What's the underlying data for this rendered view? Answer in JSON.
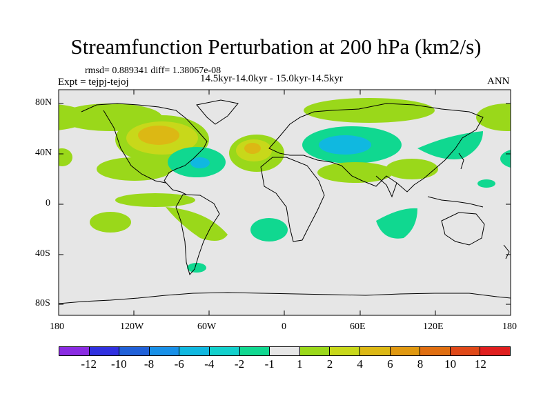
{
  "title": "Streamfunction Perturbation at 200 hPa (km2/s)",
  "stats_line": "rmsd= 0.889341 diff= 1.38067e-08",
  "left_label": "Expt = tejpj-tejoj",
  "center_label": "14.5kyr-14.0kyr - 15.0kyr-14.5kyr",
  "right_label": "ANN",
  "map": {
    "projection": "cylindrical equidistant",
    "lon_range": [
      -180,
      180
    ],
    "lat_range": [
      -90,
      90
    ],
    "lat_ticks": [
      "80N",
      "40N",
      "0",
      "40S",
      "80S"
    ],
    "lon_ticks": [
      "180",
      "120W",
      "60W",
      "0",
      "60E",
      "120E",
      "180"
    ],
    "background_color": "#e6e6e6"
  },
  "colorbar": {
    "colors": [
      "#8a2be2",
      "#3030e0",
      "#2060d8",
      "#1890e8",
      "#10b8e0",
      "#12d0cc",
      "#10d890",
      "#e6e6e6",
      "#9ad81a",
      "#c8d81a",
      "#dcb814",
      "#e09810",
      "#e06e10",
      "#e04818",
      "#e01e1e"
    ],
    "labels": [
      "-12",
      "-10",
      "-8",
      "-6",
      "-4",
      "-2",
      "-1",
      "1",
      "2",
      "4",
      "6",
      "8",
      "10",
      "12"
    ]
  },
  "contour_fills": {
    "green": "#9ad81a",
    "yellow_green": "#c8d81a",
    "gold": "#dcb814",
    "teal": "#10d890",
    "cyan": "#10b8e0"
  }
}
